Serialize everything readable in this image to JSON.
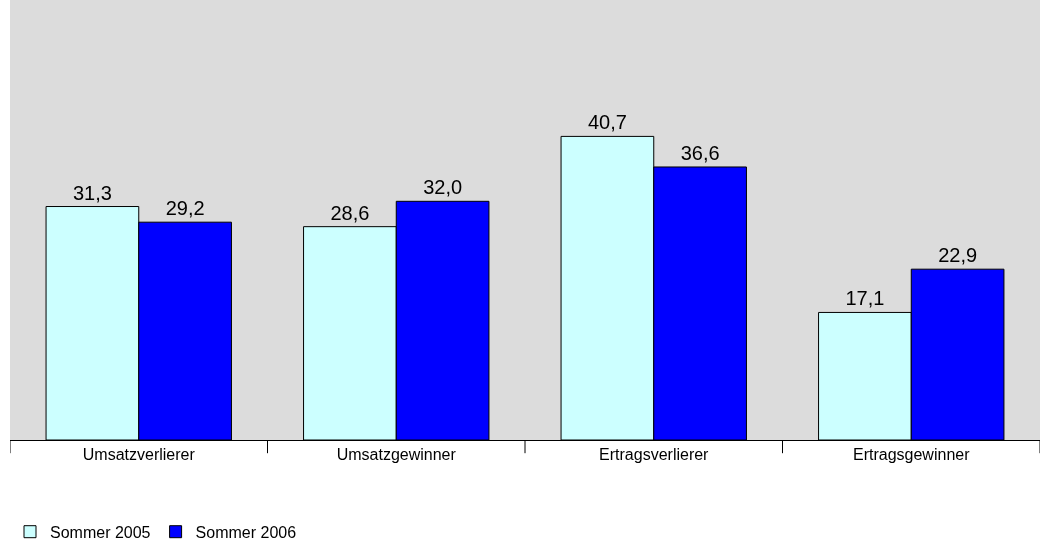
{
  "chart_data": {
    "type": "bar",
    "categories": [
      "Umsatzverlierer",
      "Umsatzgewinner",
      "Ertragsverlierer",
      "Ertragsgewinner"
    ],
    "series": [
      {
        "name": "Sommer 2005",
        "color": "#ccffff",
        "values": [
          31.3,
          28.6,
          40.7,
          17.1
        ],
        "value_labels": [
          "31,3",
          "28,6",
          "40,7",
          "17,1"
        ]
      },
      {
        "name": "Sommer 2006",
        "color": "#0000ff",
        "values": [
          29.2,
          32.0,
          36.6,
          22.9
        ],
        "value_labels": [
          "29,2",
          "32,0",
          "36,6",
          "22,9"
        ]
      }
    ],
    "legend": "bottom left"
  }
}
